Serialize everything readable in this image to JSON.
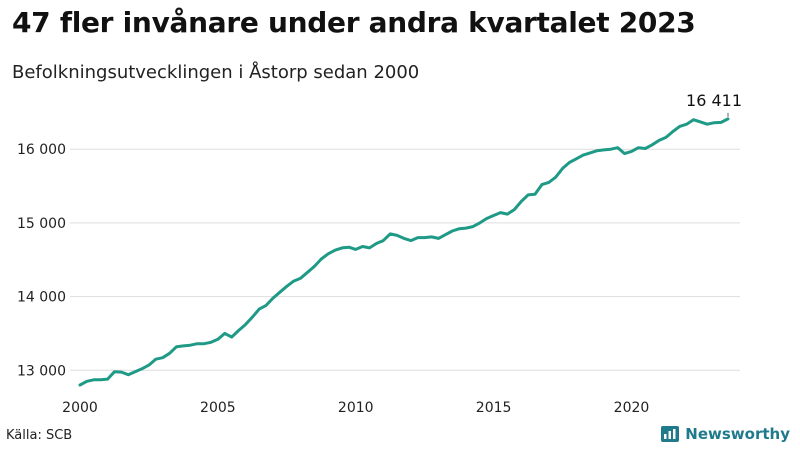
{
  "header": {
    "title": "47 fler invånare under andra kvartalet 2023",
    "subtitle": "Befolkningsutvecklingen i Åstorp sedan 2000"
  },
  "footer": {
    "source": "Källa: SCB",
    "brand": "Newsworthy"
  },
  "colors": {
    "line": "#1f9a86",
    "grid": "#dddddd",
    "brand": "#1f7a8c"
  },
  "chart_data": {
    "type": "line",
    "title": "47 fler invånare under andra kvartalet 2023",
    "subtitle": "Befolkningsutvecklingen i Åstorp sedan 2000",
    "xlabel": "",
    "ylabel": "",
    "xlim": [
      2000,
      2023.5
    ],
    "ylim": [
      12800,
      16600
    ],
    "x_ticks": [
      2000,
      2005,
      2010,
      2015,
      2020
    ],
    "y_ticks": [
      13000,
      14000,
      15000,
      16000
    ],
    "y_tick_labels": [
      "13 000",
      "14 000",
      "15 000",
      "16 000"
    ],
    "grid": true,
    "end_label": "16 411",
    "series": [
      {
        "x": [
          2000.0,
          2000.25,
          2000.5,
          2000.75,
          2001.0,
          2001.25,
          2001.5,
          2001.75,
          2002.0,
          2002.25,
          2002.5,
          2002.75,
          2003.0,
          2003.25,
          2003.5,
          2003.75,
          2004.0,
          2004.25,
          2004.5,
          2004.75,
          2005.0,
          2005.25,
          2005.5,
          2005.75,
          2006.0,
          2006.25,
          2006.5,
          2006.75,
          2007.0,
          2007.25,
          2007.5,
          2007.75,
          2008.0,
          2008.25,
          2008.5,
          2008.75,
          2009.0,
          2009.25,
          2009.5,
          2009.75,
          2010.0,
          2010.25,
          2010.5,
          2010.75,
          2011.0,
          2011.25,
          2011.5,
          2011.75,
          2012.0,
          2012.25,
          2012.5,
          2012.75,
          2013.0,
          2013.25,
          2013.5,
          2013.75,
          2014.0,
          2014.25,
          2014.5,
          2014.75,
          2015.0,
          2015.25,
          2015.5,
          2015.75,
          2016.0,
          2016.25,
          2016.5,
          2016.75,
          2017.0,
          2017.25,
          2017.5,
          2017.75,
          2018.0,
          2018.25,
          2018.5,
          2018.75,
          2019.0,
          2019.25,
          2019.5,
          2019.75,
          2020.0,
          2020.25,
          2020.5,
          2020.75,
          2021.0,
          2021.25,
          2021.5,
          2021.75,
          2022.0,
          2022.25,
          2022.5,
          2022.75,
          2023.0,
          2023.25,
          2023.5
        ],
        "values": [
          12800,
          12850,
          12870,
          12870,
          12880,
          12980,
          12975,
          12940,
          12980,
          13020,
          13070,
          13150,
          13170,
          13230,
          13320,
          13330,
          13340,
          13360,
          13360,
          13380,
          13420,
          13500,
          13450,
          13540,
          13620,
          13720,
          13830,
          13880,
          13980,
          14060,
          14140,
          14210,
          14250,
          14330,
          14410,
          14510,
          14580,
          14630,
          14660,
          14670,
          14640,
          14680,
          14660,
          14720,
          14760,
          14850,
          14830,
          14790,
          14760,
          14800,
          14800,
          14810,
          14790,
          14840,
          14890,
          14920,
          14930,
          14950,
          15000,
          15060,
          15100,
          15140,
          15120,
          15180,
          15290,
          15380,
          15390,
          15520,
          15550,
          15620,
          15740,
          15820,
          15870,
          15920,
          15950,
          15980,
          15990,
          16000,
          16020,
          15940,
          15970,
          16020,
          16010,
          16060,
          16120,
          16160,
          16240,
          16310,
          16340,
          16400,
          16370,
          16340,
          16360,
          16364,
          16411
        ]
      }
    ]
  }
}
